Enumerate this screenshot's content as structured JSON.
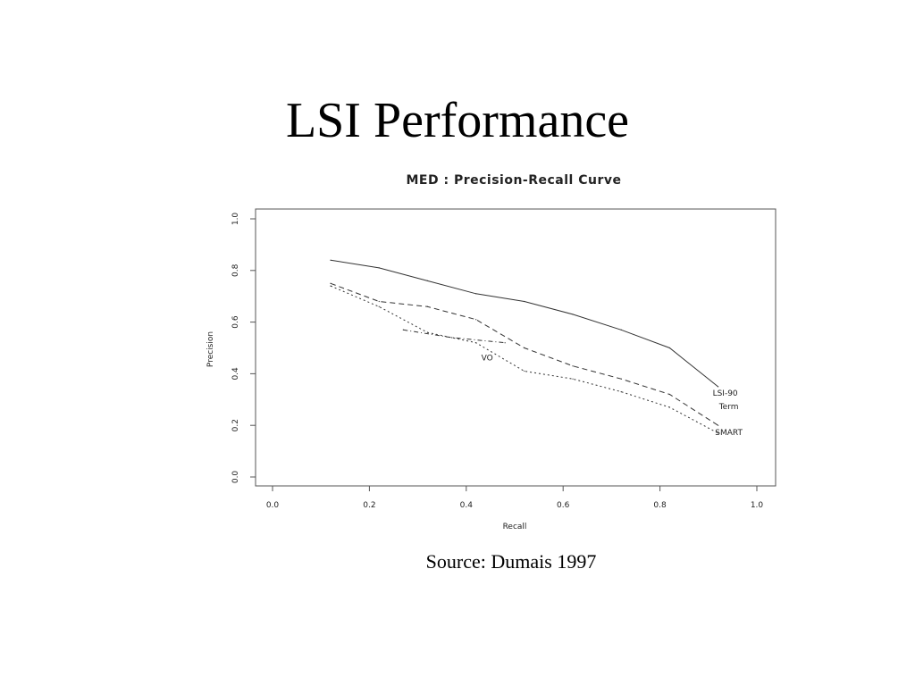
{
  "slide": {
    "title": "LSI Performance",
    "source": "Source: Dumais 1997"
  },
  "chart_data": {
    "type": "line",
    "title": "MED : Precision-Recall Curve",
    "xlabel": "Recall",
    "ylabel": "Precision",
    "xlim": [
      0.0,
      1.0
    ],
    "ylim": [
      0.0,
      1.0
    ],
    "xticks": [
      "0.0",
      "0.2",
      "0.4",
      "0.6",
      "0.8",
      "1.0"
    ],
    "yticks": [
      "0.0",
      "0.2",
      "0.4",
      "0.6",
      "0.8",
      "1.0"
    ],
    "grid": false,
    "legend": "labels at line ends",
    "series": [
      {
        "name": "LSI-90",
        "style": "solid",
        "x": [
          0.12,
          0.22,
          0.32,
          0.42,
          0.52,
          0.62,
          0.72,
          0.82,
          0.92
        ],
        "y": [
          0.84,
          0.81,
          0.76,
          0.71,
          0.68,
          0.63,
          0.57,
          0.5,
          0.35
        ]
      },
      {
        "name": "Term",
        "style": "dashed",
        "x": [
          0.12,
          0.22,
          0.32,
          0.42,
          0.52,
          0.62,
          0.72,
          0.82,
          0.92
        ],
        "y": [
          0.75,
          0.68,
          0.66,
          0.61,
          0.5,
          0.43,
          0.38,
          0.32,
          0.2
        ]
      },
      {
        "name": "SMART",
        "style": "dotted",
        "x": [
          0.12,
          0.22,
          0.32,
          0.42,
          0.52,
          0.62,
          0.72,
          0.82,
          0.92
        ],
        "y": [
          0.74,
          0.66,
          0.56,
          0.52,
          0.41,
          0.38,
          0.33,
          0.27,
          0.17
        ]
      },
      {
        "name": "VO",
        "style": "dash-dot",
        "x": [
          0.27,
          0.37,
          0.48
        ],
        "y": [
          0.57,
          0.54,
          0.52
        ]
      }
    ]
  }
}
